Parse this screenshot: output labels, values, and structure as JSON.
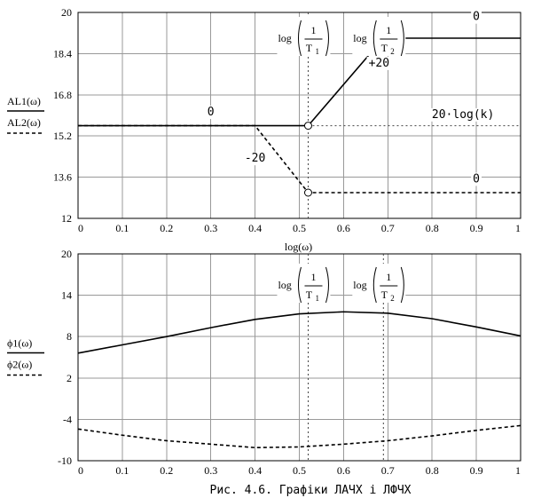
{
  "chart_data": [
    {
      "type": "line",
      "xlabel": "log(ω)",
      "ylabel_series": [
        "AL1(ω)",
        "AL2(ω)"
      ],
      "xlim": [
        0,
        1
      ],
      "ylim": [
        12,
        20
      ],
      "xticks": [
        "0",
        "0.1",
        "0.2",
        "0.3",
        "0.4",
        "0.5",
        "0.6",
        "0.7",
        "0.8",
        "0.9",
        "1"
      ],
      "yticks": [
        "20",
        "18.4",
        "16.8",
        "15.2",
        "13.6",
        "12"
      ],
      "series": [
        {
          "name": "AL1(ω)",
          "style": "solid",
          "x": [
            0,
            0.52,
            0.69,
            0.69,
            1
          ],
          "y": [
            15.6,
            15.6,
            19.0,
            19.0,
            19.0
          ]
        },
        {
          "name": "AL2(ω)",
          "style": "dashed",
          "x": [
            0,
            0.4,
            0.52,
            1
          ],
          "y": [
            15.6,
            15.6,
            13.0,
            13.0
          ]
        }
      ],
      "markers": [
        {
          "x": 0.52,
          "y": 15.6,
          "shape": "open-circle"
        },
        {
          "x": 0.52,
          "y": 13.0,
          "shape": "open-circle"
        }
      ],
      "vlines": [
        {
          "x": 0.52,
          "style": "dotted"
        }
      ],
      "hlines": [
        {
          "y": 15.6,
          "style": "dotted",
          "x_from": 0.52
        }
      ],
      "annotations": [
        {
          "text": "0",
          "x": 0.3,
          "y": 16.0
        },
        {
          "text": "+20",
          "x": 0.68,
          "y": 17.9
        },
        {
          "text": "-20",
          "x": 0.4,
          "y": 14.2
        },
        {
          "text": "0",
          "x": 0.9,
          "y": 13.4
        },
        {
          "text": "0",
          "x": 0.9,
          "y": 19.7
        },
        {
          "text": "20·log(k)",
          "x": 0.87,
          "y": 15.9
        }
      ],
      "labels": [
        {
          "prefix": "log",
          "num": "1",
          "den": "T",
          "sub": "1",
          "x": 0.52,
          "y": 19.0
        },
        {
          "prefix": "log",
          "num": "1",
          "den": "T",
          "sub": "2",
          "x": 0.69,
          "y": 19.0
        }
      ]
    },
    {
      "type": "line",
      "xlabel": "",
      "ylabel_series": [
        "ϕ1(ω)",
        "ϕ2(ω)"
      ],
      "xlim": [
        0,
        1
      ],
      "ylim": [
        -10,
        20
      ],
      "xticks": [
        "0",
        "0.1",
        "0.2",
        "0.3",
        "0.4",
        "0.5",
        "0.6",
        "0.7",
        "0.8",
        "0.9",
        "1"
      ],
      "yticks": [
        "20",
        "14",
        "8",
        "2",
        "-4",
        "-10"
      ],
      "series": [
        {
          "name": "ϕ1(ω)",
          "style": "solid",
          "x": [
            0,
            0.1,
            0.2,
            0.3,
            0.4,
            0.5,
            0.6,
            0.7,
            0.8,
            0.9,
            1
          ],
          "y": [
            5.6,
            6.8,
            8.0,
            9.3,
            10.5,
            11.3,
            11.6,
            11.4,
            10.6,
            9.4,
            8.1
          ]
        },
        {
          "name": "ϕ2(ω)",
          "style": "dashed",
          "x": [
            0,
            0.1,
            0.2,
            0.3,
            0.4,
            0.5,
            0.6,
            0.7,
            0.8,
            0.9,
            1
          ],
          "y": [
            -5.4,
            -6.3,
            -7.1,
            -7.6,
            -8.1,
            -8.0,
            -7.6,
            -7.1,
            -6.4,
            -5.6,
            -4.9
          ]
        }
      ],
      "vlines": [
        {
          "x": 0.52,
          "style": "dotted"
        },
        {
          "x": 0.69,
          "style": "dotted"
        }
      ],
      "labels": [
        {
          "prefix": "log",
          "num": "1",
          "den": "T",
          "sub": "1",
          "x": 0.52,
          "y": 15.5
        },
        {
          "prefix": "log",
          "num": "1",
          "den": "T",
          "sub": "2",
          "x": 0.69,
          "y": 15.5
        }
      ]
    }
  ],
  "caption": "Рис. 4.6. Графіки ЛАЧХ і ЛФЧХ"
}
